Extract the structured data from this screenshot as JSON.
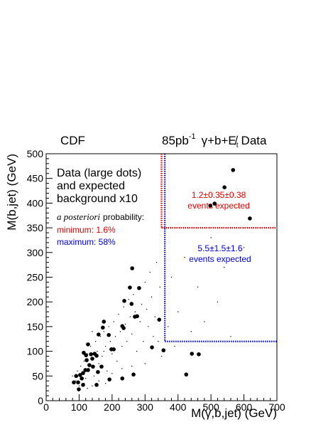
{
  "chart_data": {
    "type": "scatter",
    "title": "CDF",
    "luminosity": "85pb",
    "luminosity_exponent": "-1",
    "process": "γ+b+E̸",
    "process_subscript": "t",
    "process_suffix": "Data",
    "xlabel": "M(γ,b,jet) (GeV)",
    "ylabel": "M(b,jet) (GeV)",
    "xlim": [
      0,
      700
    ],
    "ylim": [
      0,
      500
    ],
    "xticks": [
      0,
      100,
      200,
      300,
      400,
      500,
      600,
      700
    ],
    "yticks": [
      0,
      50,
      100,
      150,
      200,
      250,
      300,
      350,
      400,
      450,
      500
    ],
    "legend_text": [
      "Data (large dots)",
      "and expected",
      "background x10"
    ],
    "probability_italic": "a posteriori",
    "probability_text": "probability:",
    "minimum": "minimum: 1.6%",
    "maximum": "maximum: 58%",
    "regions": [
      {
        "color": "#e00000",
        "xmin": 350,
        "ymin": 350,
        "labels": [
          "1.2±0.35±0.38",
          "events expected"
        ]
      },
      {
        "color": "#0000e0",
        "xmin": 360,
        "ymin": 120,
        "labels": [
          "5.5±1.5±1.6",
          "events expected"
        ]
      }
    ],
    "series": [
      {
        "color": "#000000",
        "x": [
          567,
          541,
          511,
          498,
          618,
          261,
          254,
          282,
          237,
          259,
          269,
          276,
          231,
          235,
          175,
          172,
          159,
          190,
          198,
          205,
          127,
          140,
          153,
          123,
          142,
          157,
          153,
          192,
          168,
          231,
          265,
          321,
          356,
          343,
          425,
          442,
          463,
          84,
          91,
          97,
          99,
          103,
          108,
          112,
          119,
          112,
          127,
          131,
          136,
          147,
          114,
          121
        ],
        "y": [
          467,
          432,
          399,
          395,
          369,
          268,
          229,
          228,
          202,
          196,
          170,
          171,
          151,
          147,
          160,
          148,
          134,
          133,
          104,
          104,
          114,
          85,
          91,
          82,
          69,
          58,
          32,
          43,
          69,
          45,
          53,
          108,
          102,
          164,
          53,
          95,
          94,
          37,
          50,
          37,
          23,
          52,
          45,
          56,
          62,
          32,
          62,
          72,
          94,
          95,
          97,
          92
        ]
      },
      {
        "color": "#000000",
        "x": [
          80,
          90,
          95,
          100,
          105,
          110,
          115,
          120,
          125,
          130,
          135,
          140,
          145,
          150,
          155,
          160,
          165,
          170,
          175,
          180,
          185,
          190,
          195,
          200,
          205,
          210,
          215,
          220,
          225,
          230,
          235,
          240,
          245,
          250,
          255,
          260,
          265,
          270,
          275,
          280,
          285,
          290,
          295,
          300,
          305,
          310,
          315,
          320,
          325,
          330,
          335,
          340,
          345,
          350,
          360,
          370,
          380,
          390,
          400,
          420,
          440,
          460,
          480,
          500,
          520,
          540,
          560,
          600,
          115,
          125,
          140,
          160,
          180,
          200,
          230,
          260,
          300,
          140,
          175
        ],
        "y": [
          50,
          40,
          60,
          30,
          70,
          55,
          80,
          45,
          95,
          65,
          110,
          85,
          50,
          120,
          100,
          75,
          130,
          90,
          140,
          110,
          60,
          150,
          120,
          95,
          160,
          130,
          80,
          175,
          140,
          110,
          190,
          155,
          120,
          205,
          170,
          135,
          215,
          180,
          100,
          230,
          160,
          195,
          120,
          240,
          185,
          150,
          260,
          210,
          130,
          170,
          280,
          120,
          230,
          90,
          200,
          150,
          250,
          110,
          180,
          290,
          140,
          230,
          160,
          330,
          200,
          270,
          130,
          310,
          35,
          25,
          30,
          40,
          35,
          55,
          65,
          70,
          75,
          140,
          100
        ]
      }
    ]
  }
}
